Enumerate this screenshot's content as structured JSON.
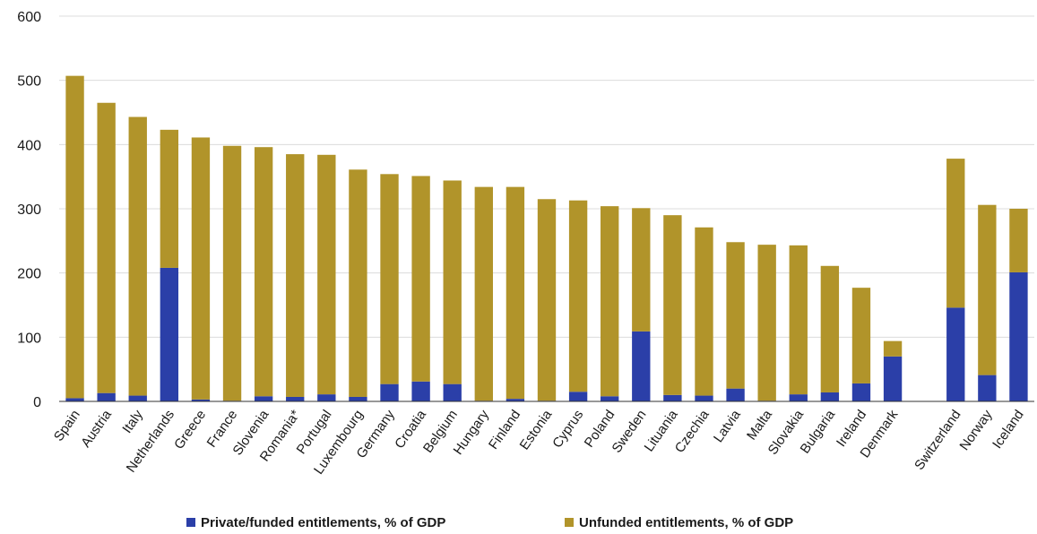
{
  "chart_data": {
    "type": "bar",
    "stacked": true,
    "categories": [
      "Spain",
      "Austria",
      "Italy",
      "Netherlands",
      "Greece",
      "France",
      "Slovenia",
      "Romania*",
      "Portugal",
      "Luxembourg",
      "Germany",
      "Croatia",
      "Belgium",
      "Hungary",
      "Finland",
      "Estonia",
      "Cyprus",
      "Poland",
      "Sweden",
      "Lituania",
      "Czechia",
      "Latvia",
      "Malta",
      "Slovakia",
      "Bulgaria",
      "Ireland",
      "Denmark",
      "Switzerland",
      "Norway",
      "Iceland"
    ],
    "gap_before": [
      "Switzerland"
    ],
    "series": [
      {
        "name": "Private/funded entitlements, % of GDP",
        "color": "#2b3fa8",
        "values": [
          5,
          13,
          9,
          208,
          3,
          1,
          8,
          7,
          11,
          7,
          27,
          31,
          27,
          1,
          4,
          1,
          15,
          8,
          109,
          10,
          9,
          20,
          1,
          11,
          14,
          28,
          70,
          146,
          41,
          201
        ]
      },
      {
        "name": "Unfunded entitlements, % of GDP",
        "color": "#b1942a",
        "values": [
          502,
          452,
          434,
          215,
          408,
          397,
          388,
          378,
          373,
          354,
          327,
          320,
          317,
          333,
          330,
          314,
          298,
          296,
          192,
          280,
          262,
          228,
          243,
          232,
          197,
          149,
          24,
          232,
          265,
          99
        ]
      }
    ],
    "y_ticks": [
      0,
      100,
      200,
      300,
      400,
      500,
      600
    ],
    "ylim": [
      0,
      600
    ],
    "title": "",
    "xlabel": "",
    "ylabel": "",
    "grid": true,
    "legend_position": "bottom-center"
  }
}
